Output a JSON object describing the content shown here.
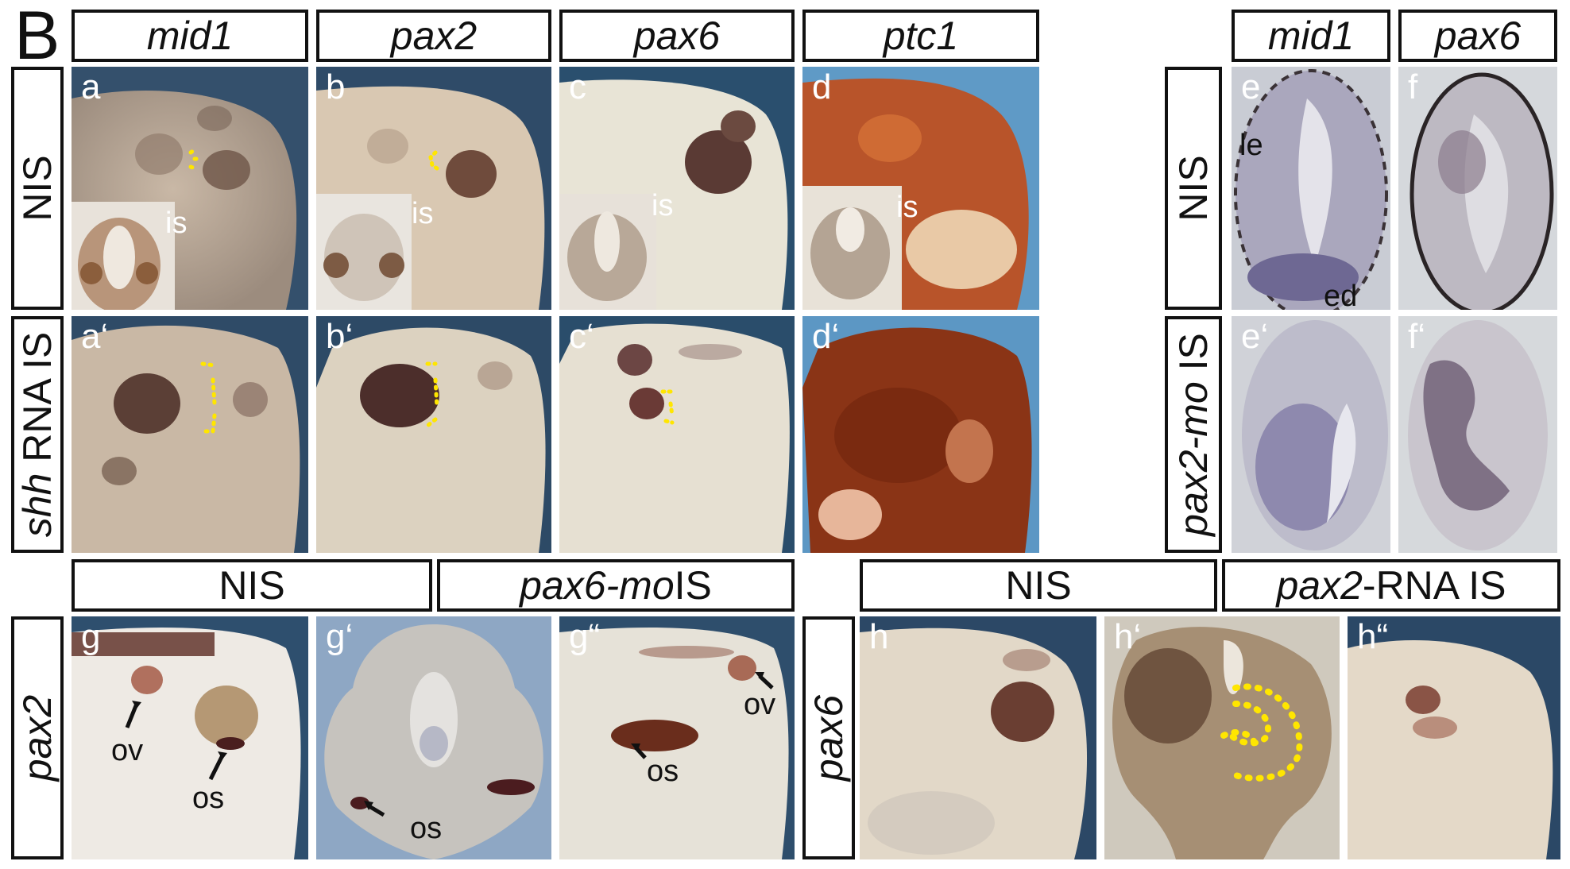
{
  "figure": {
    "section_letter": "B",
    "top_left_headers": [
      {
        "text": "mid1",
        "italic": true
      },
      {
        "text": "pax2",
        "italic": true
      },
      {
        "text": "pax6",
        "italic": true
      },
      {
        "text": "ptc1",
        "italic": true
      }
    ],
    "top_right_headers": [
      {
        "text": "mid1",
        "italic": true
      },
      {
        "text": "pax6",
        "italic": true
      }
    ],
    "row_labels": {
      "nis": "NIS",
      "shh_italic": "shh",
      "shh_rest": " RNA IS",
      "pax2mo_italic": "pax2-mo",
      "pax2mo_rest": " IS",
      "pax2": "pax2",
      "pax6": "pax6"
    },
    "bottom_headers": {
      "nis_left": "NIS",
      "pax6mo_italic": "pax6-mo",
      "pax6mo_rest": " IS",
      "nis_right": "NIS",
      "pax2rna_italic": "pax2",
      "pax2rna_rest": "-RNA IS"
    },
    "panel_labels": {
      "a": "a",
      "b": "b",
      "c": "c",
      "d": "d",
      "e": "e",
      "f": "f",
      "a2": "a‘",
      "b2": "b‘",
      "c2": "c‘",
      "d2": "d‘",
      "e2": "e‘",
      "f2": "f‘",
      "g": "g",
      "g2": "g‘",
      "g3": "g“",
      "h": "h",
      "h2": "h‘",
      "h3": "h“"
    },
    "annotations": {
      "is": "is",
      "le": "le",
      "ed": "ed",
      "ov": "ov",
      "os": "os"
    },
    "colors": {
      "dotted_outline": "#ffe600",
      "panel_bg_blue": "#2f4a66",
      "frame": "#111111"
    }
  }
}
